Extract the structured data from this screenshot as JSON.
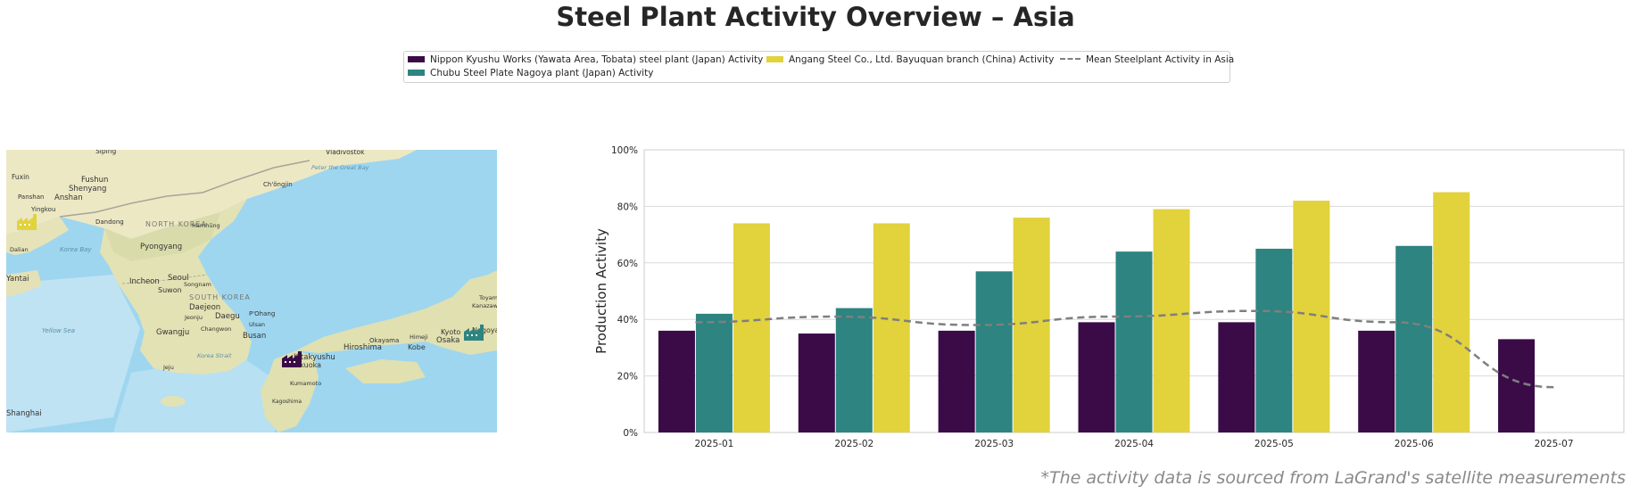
{
  "title": "Steel Plant Activity Overview – Asia",
  "footnote": "*The activity data is sourced from LaGrand's satellite measurements",
  "colors": {
    "nippon": "#3b0b47",
    "chubu": "#2d8480",
    "angang": "#e2d23c",
    "mean": "#7f7f7f"
  },
  "map": {
    "icons": [
      "nippon-factory-icon",
      "chubu-factory-icon",
      "angang-factory-icon"
    ],
    "labels": [
      {
        "id": "siping",
        "text": "Siping"
      },
      {
        "id": "vladivostok",
        "text": "Vladivostok"
      },
      {
        "id": "fuxin",
        "text": "Fuxin"
      },
      {
        "id": "fushun",
        "text": "Fushun"
      },
      {
        "id": "shenyang",
        "text": "Shenyang"
      },
      {
        "id": "panshan",
        "text": "Panshan"
      },
      {
        "id": "anshan",
        "text": "Anshan"
      },
      {
        "id": "yingkou",
        "text": "Yingkou"
      },
      {
        "id": "chongjin",
        "text": "Ch'ŏngjin"
      },
      {
        "id": "peter-great-bay",
        "text": "Peter the Great Bay"
      },
      {
        "id": "dandong",
        "text": "Dandong"
      },
      {
        "id": "north-korea",
        "text": "NORTH KOREA"
      },
      {
        "id": "hamhung",
        "text": "Hamhŭng"
      },
      {
        "id": "dalian",
        "text": "Dalian"
      },
      {
        "id": "korea-bay",
        "text": "Korea Bay"
      },
      {
        "id": "pyongyang",
        "text": "Pyongyang"
      },
      {
        "id": "yantai",
        "text": "Yantai"
      },
      {
        "id": "incheon",
        "text": "Incheon"
      },
      {
        "id": "seoul",
        "text": "Seoul"
      },
      {
        "id": "songnam",
        "text": "Songnam"
      },
      {
        "id": "suwon",
        "text": "Suwon"
      },
      {
        "id": "south-korea",
        "text": "SOUTH KOREA"
      },
      {
        "id": "daejeon",
        "text": "Daejeon"
      },
      {
        "id": "jeonju",
        "text": "Jeonju"
      },
      {
        "id": "daegu",
        "text": "Daegu"
      },
      {
        "id": "pohang",
        "text": "P'Ohang"
      },
      {
        "id": "ulsan",
        "text": "Ulsan"
      },
      {
        "id": "gwangju",
        "text": "Gwangju"
      },
      {
        "id": "changwon",
        "text": "Changwon"
      },
      {
        "id": "busan",
        "text": "Busan"
      },
      {
        "id": "yellow-sea",
        "text": "Yellow Sea"
      },
      {
        "id": "korea-strait",
        "text": "Korea Strait"
      },
      {
        "id": "jeju",
        "text": "Jeju"
      },
      {
        "id": "kitakyushu",
        "text": "Kitakyushu"
      },
      {
        "id": "fukuoka",
        "text": "Fukuoka"
      },
      {
        "id": "hiroshima",
        "text": "Hiroshima"
      },
      {
        "id": "okayama",
        "text": "Okayama"
      },
      {
        "id": "himeji",
        "text": "Himeji"
      },
      {
        "id": "kobe",
        "text": "Kobe"
      },
      {
        "id": "osaka",
        "text": "Osaka"
      },
      {
        "id": "kyoto",
        "text": "Kyoto"
      },
      {
        "id": "nagoya",
        "text": "Nagoya"
      },
      {
        "id": "toyama",
        "text": "Toyama"
      },
      {
        "id": "kanazawa",
        "text": "Kanazawa"
      },
      {
        "id": "kumamoto",
        "text": "Kumamoto"
      },
      {
        "id": "kagoshima",
        "text": "Kagoshima"
      },
      {
        "id": "shanghai",
        "text": "Shanghai"
      }
    ]
  },
  "chart_data": {
    "type": "bar",
    "categories": [
      "2025-01",
      "2025-02",
      "2025-03",
      "2025-04",
      "2025-05",
      "2025-06",
      "2025-07"
    ],
    "series": [
      {
        "key": "nippon",
        "name": "Nippon Kyushu Works (Yawata Area, Tobata) steel plant (Japan) Activity",
        "values": [
          36,
          35,
          36,
          39,
          39,
          36,
          33
        ]
      },
      {
        "key": "chubu",
        "name": "Chubu Steel Plate Nagoya plant (Japan) Activity",
        "values": [
          42,
          44,
          57,
          64,
          65,
          66,
          null
        ]
      },
      {
        "key": "angang",
        "name": "Angang Steel Co., Ltd. Bayuquan branch (China) Activity",
        "values": [
          74,
          74,
          76,
          79,
          82,
          85,
          null
        ]
      }
    ],
    "mean_series": {
      "name": "Mean Steelplant Activity in Asia",
      "values": [
        39,
        41,
        38,
        41,
        43,
        39,
        16
      ]
    },
    "ylabel": "Production Activity",
    "ylim": [
      0,
      100
    ],
    "yticks": [
      "0%",
      "20%",
      "40%",
      "60%",
      "80%",
      "100%"
    ],
    "grid": true,
    "legend_position": "top-center"
  }
}
